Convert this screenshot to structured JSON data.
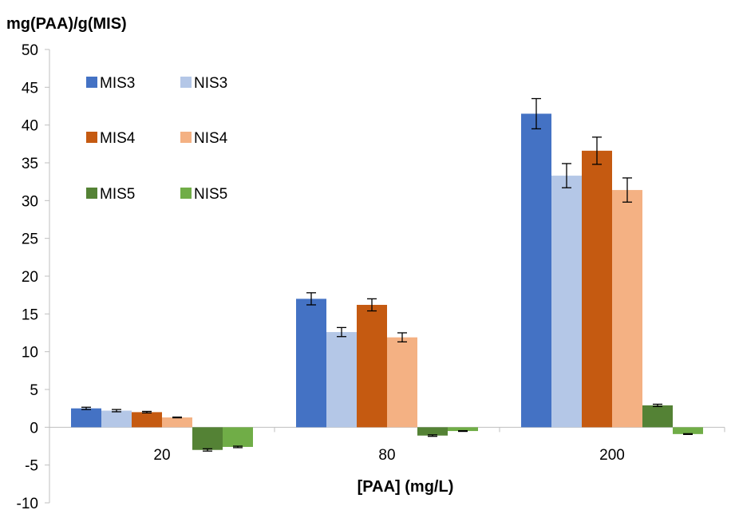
{
  "chart_data": {
    "type": "bar",
    "title": "",
    "ylabel": "mg(PAA)/g(MIS)",
    "xlabel": "[PAA] (mg/L)",
    "categories": [
      "20",
      "80",
      "200"
    ],
    "ylim": [
      -10,
      50
    ],
    "yticks": [
      -10,
      -5,
      0,
      5,
      10,
      15,
      20,
      25,
      30,
      35,
      40,
      45,
      50
    ],
    "grid": false,
    "legend_position": "top-left",
    "series": [
      {
        "name": "MIS3",
        "color": "#4472C4",
        "values": [
          2.5,
          17.0,
          41.5
        ],
        "errors": [
          0.15,
          0.8,
          2.0
        ]
      },
      {
        "name": "NIS3",
        "color": "#B4C7E7",
        "values": [
          2.2,
          12.6,
          33.3
        ],
        "errors": [
          0.15,
          0.6,
          1.6
        ]
      },
      {
        "name": "MIS4",
        "color": "#C55A11",
        "values": [
          2.0,
          16.2,
          36.6
        ],
        "errors": [
          0.1,
          0.8,
          1.8
        ]
      },
      {
        "name": "NIS4",
        "color": "#F4B183",
        "values": [
          1.3,
          11.9,
          31.4
        ],
        "errors": [
          0.05,
          0.6,
          1.6
        ]
      },
      {
        "name": "MIS5",
        "color": "#548235",
        "values": [
          -3.0,
          -1.1,
          2.9
        ],
        "errors": [
          0.15,
          0.1,
          0.15
        ]
      },
      {
        "name": "NIS5",
        "color": "#70AD47",
        "values": [
          -2.6,
          -0.5,
          -0.9
        ],
        "errors": [
          0.1,
          0.05,
          0.05
        ]
      }
    ]
  }
}
